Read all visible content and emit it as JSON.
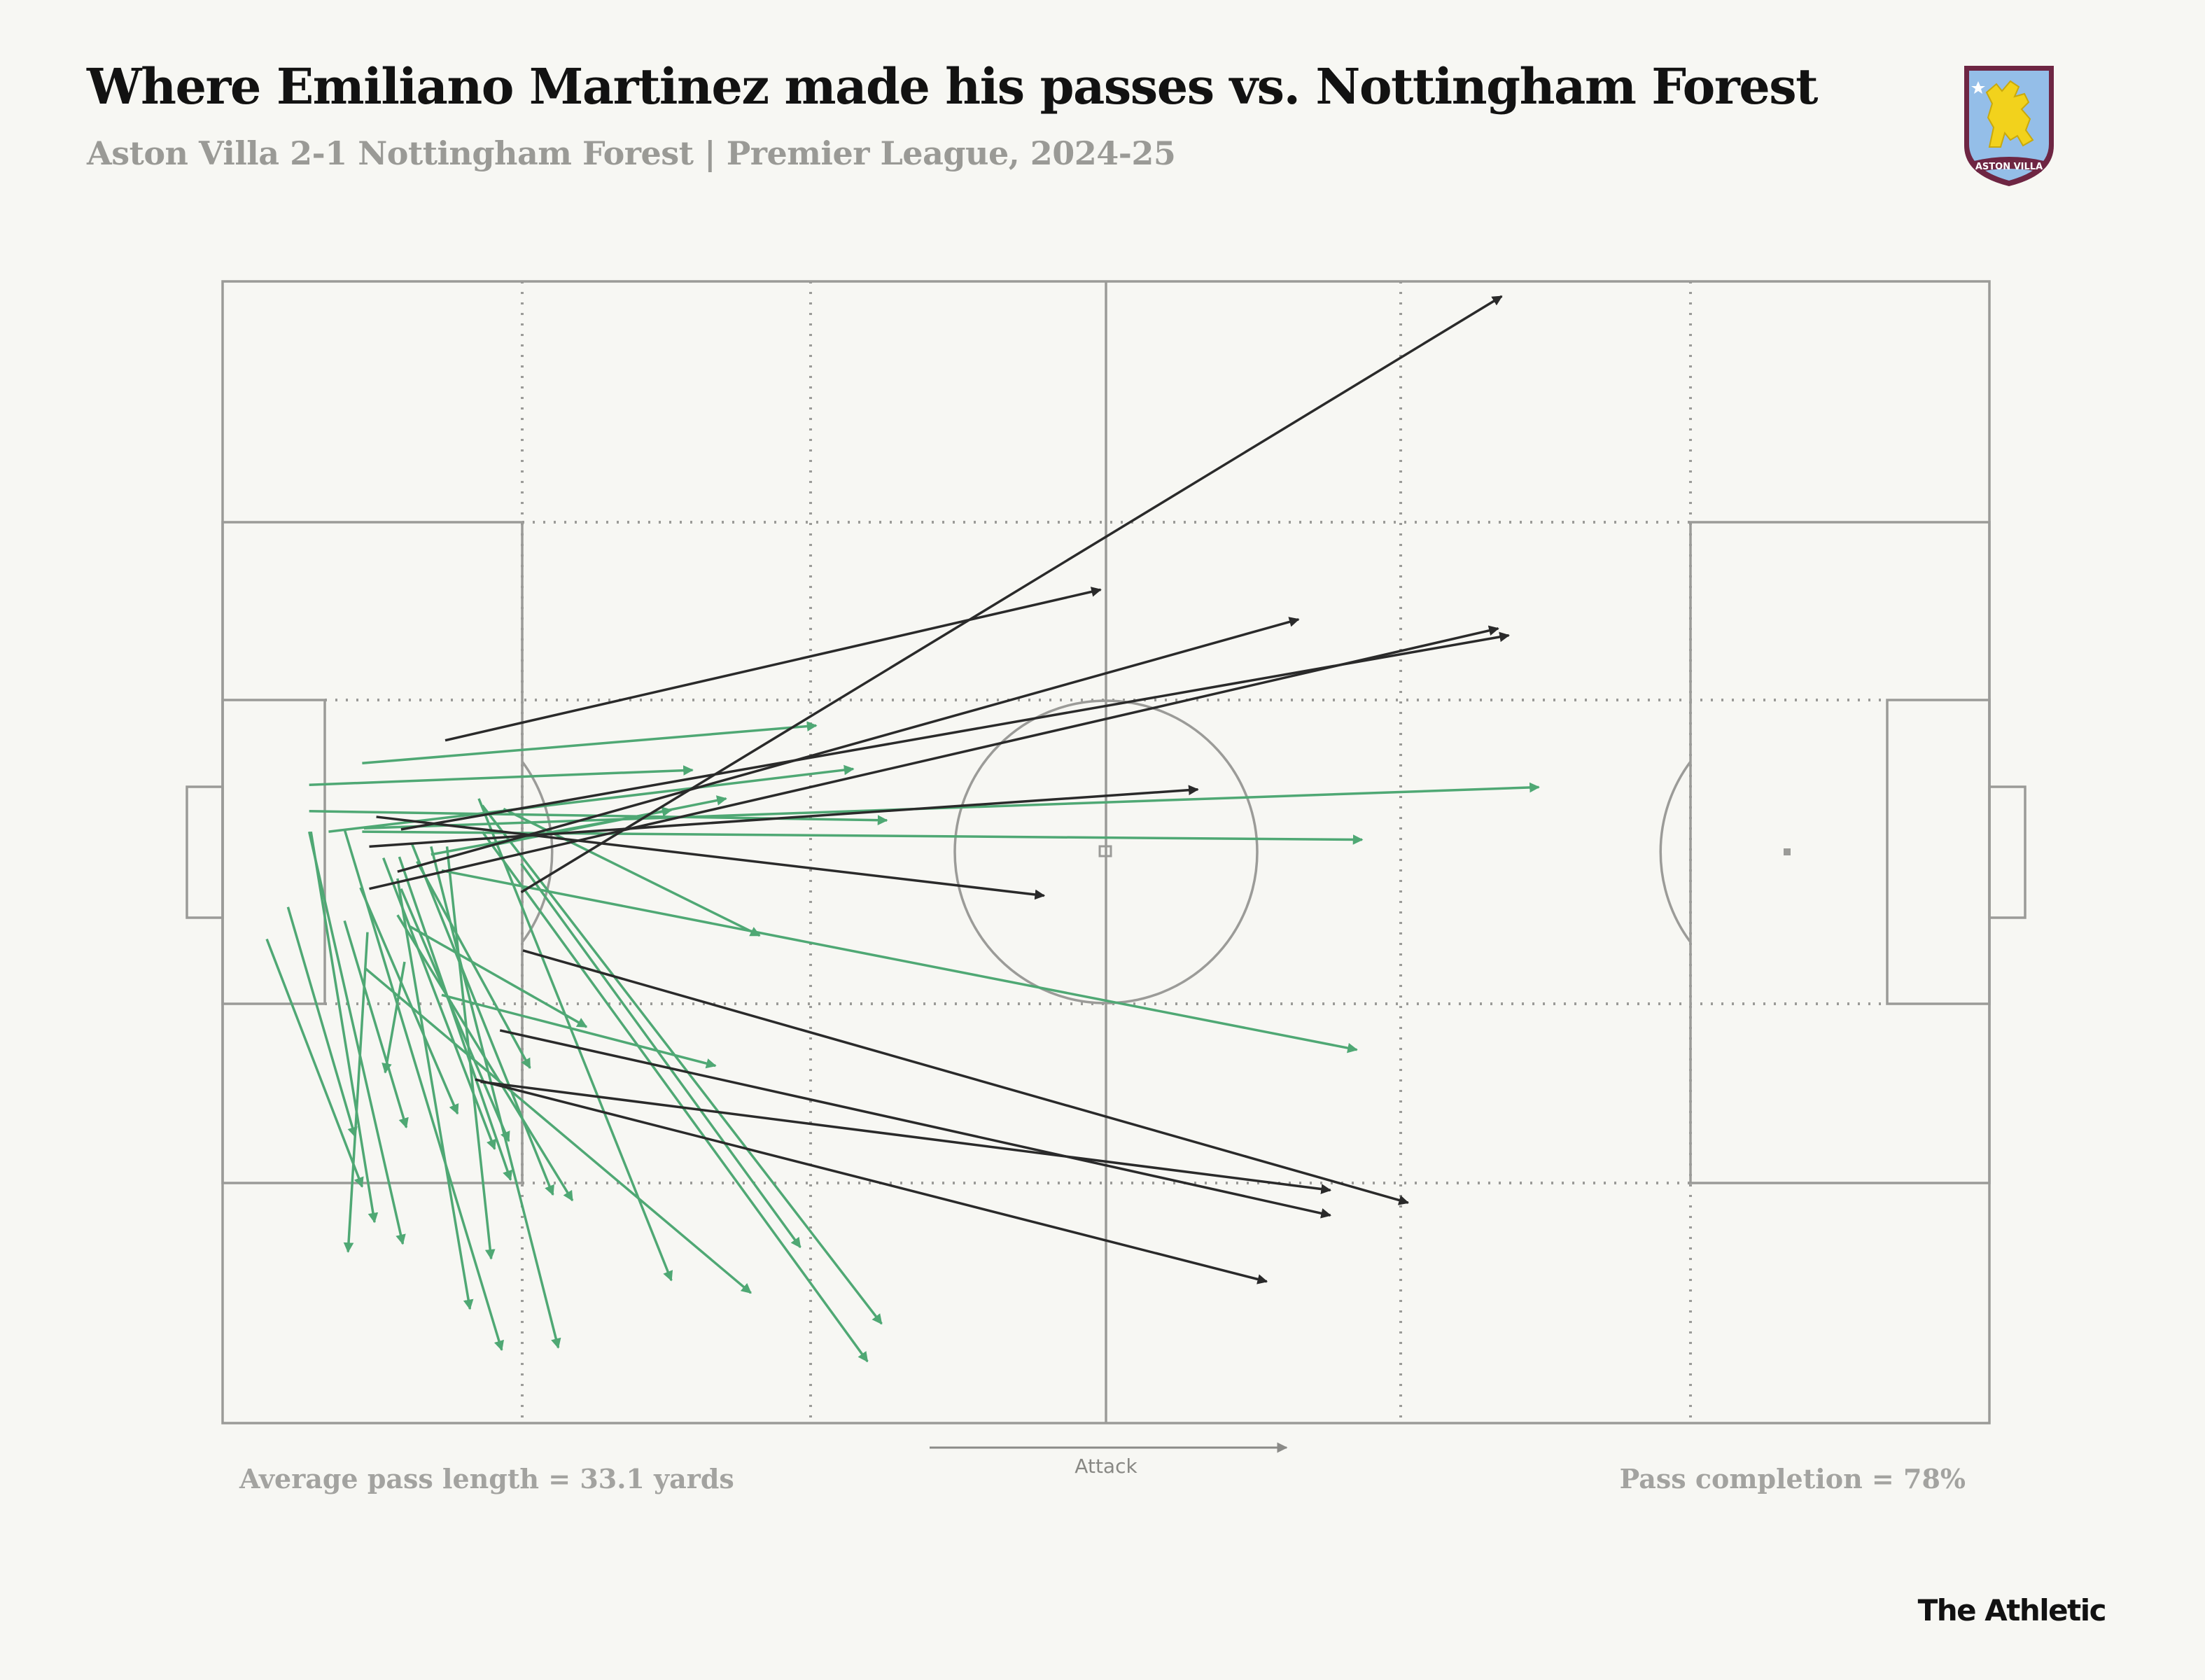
{
  "header": {
    "title": "Where Emiliano Martinez made his passes vs. Nottingham Forest",
    "subtitle": "Aston Villa 2-1 Nottingham Forest | Premier League, 2024-25"
  },
  "crest": {
    "text": "ASTON VILLA",
    "name": "aston-villa-crest-icon"
  },
  "stats": {
    "avg_pass_length": "Average pass length = 33.1 yards",
    "pass_completion": "Pass completion = 78%"
  },
  "pitch": {
    "attack_label": "Attack"
  },
  "brand": "The Athletic",
  "colors": {
    "completed": "#4fa874",
    "incomplete": "#2a2a2a",
    "pitch_lines": "#9b9b98",
    "background": "#f7f7f3"
  },
  "chart_data": {
    "type": "pass_map",
    "pitch_length": 100,
    "pitch_width": 100,
    "direction": "left-to-right",
    "series": [
      {
        "name": "completed",
        "passes": [
          [
            6,
            48.2,
            35.7,
            42.7
          ],
          [
            8,
            47.9,
            74.5,
            44.3
          ],
          [
            4.9,
            46.4,
            37.6,
            47.2
          ],
          [
            4.9,
            44.1,
            26.6,
            42.8
          ],
          [
            11.8,
            50.2,
            25.4,
            46.3
          ],
          [
            14.9,
            49.5,
            28.5,
            45.3
          ],
          [
            7.9,
            42.2,
            33.6,
            38.9
          ],
          [
            7.9,
            48.2,
            64.5,
            48.9
          ],
          [
            12.4,
            51.6,
            64.2,
            67.3
          ],
          [
            15.9,
            46.2,
            30.4,
            57.3
          ],
          [
            10.6,
            56.5,
            20.6,
            65.3
          ],
          [
            12.4,
            62.5,
            27.9,
            68.7
          ],
          [
            8.1,
            60.2,
            29.9,
            88.6
          ],
          [
            14.7,
            48.2,
            36.5,
            94.6
          ],
          [
            14.7,
            45.9,
            37.3,
            91.3
          ],
          [
            16.9,
            51,
            32.7,
            84.6
          ],
          [
            14.5,
            45.3,
            25.4,
            87.5
          ],
          [
            11.8,
            49.5,
            19,
            93.4
          ],
          [
            12.7,
            49.5,
            15.2,
            85.6
          ],
          [
            9.9,
            52.3,
            14,
            90
          ],
          [
            6.9,
            48,
            15.8,
            93.6
          ],
          [
            4.9,
            48.2,
            10.2,
            84.3
          ],
          [
            5,
            48.2,
            8.6,
            82.4
          ],
          [
            10.3,
            59.6,
            9.2,
            69.3
          ],
          [
            7.8,
            53.1,
            13.3,
            72.9
          ],
          [
            6.9,
            56,
            10.4,
            74.1
          ],
          [
            9.1,
            50.5,
            15.4,
            76
          ],
          [
            9.9,
            55.5,
            19.8,
            80.5
          ],
          [
            11,
            50.8,
            17.4,
            68.9
          ],
          [
            10.1,
            53.2,
            16.2,
            75.3
          ],
          [
            8.2,
            57,
            7.1,
            85
          ],
          [
            10,
            50.4,
            16.3,
            78.7
          ],
          [
            3.7,
            54.8,
            7.5,
            74.9
          ],
          [
            2.5,
            57.6,
            7.9,
            79.3
          ],
          [
            10.7,
            49.2,
            18.7,
            80
          ]
        ]
      },
      {
        "name": "incomplete",
        "passes": [
          [
            16.9,
            53.5,
            72.4,
            1.3
          ],
          [
            12.6,
            40.2,
            49.7,
            27
          ],
          [
            9.9,
            51.7,
            60.9,
            29.6
          ],
          [
            8.3,
            53.2,
            72.2,
            30.4
          ],
          [
            10.1,
            48,
            72.8,
            31
          ],
          [
            8.3,
            49.5,
            55.2,
            44.5
          ],
          [
            8.7,
            46.9,
            46.5,
            53.8
          ],
          [
            14.3,
            69.9,
            59.1,
            87.6
          ],
          [
            14.6,
            70.1,
            62.7,
            79.6
          ],
          [
            17,
            58.6,
            67.1,
            80.7
          ],
          [
            15.7,
            65.6,
            62.7,
            81.8
          ]
        ]
      }
    ]
  }
}
